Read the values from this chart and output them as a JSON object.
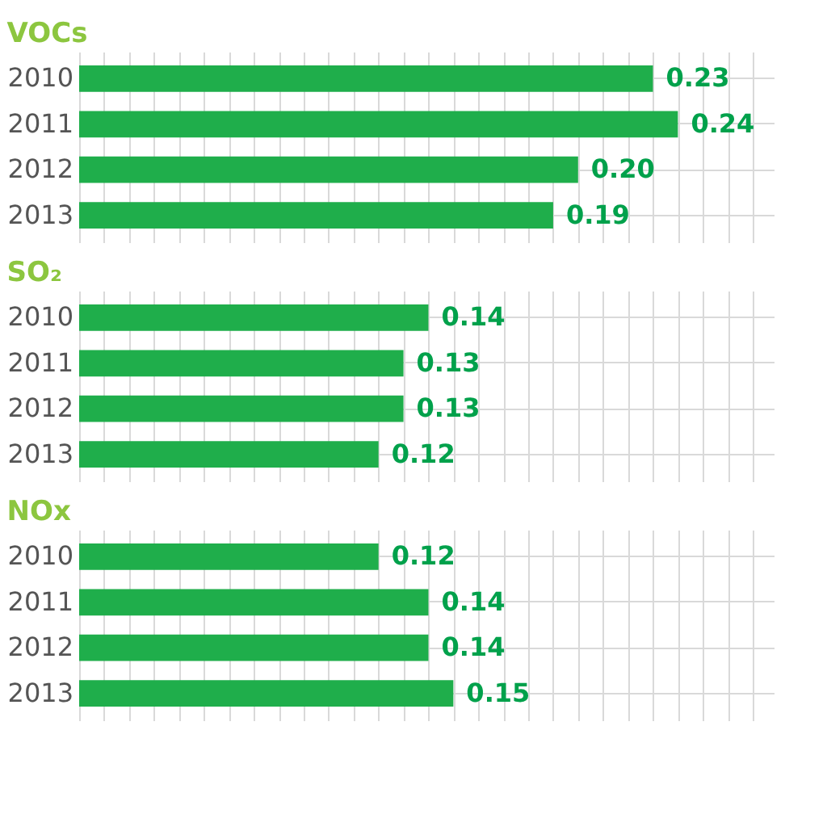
{
  "chart_data": [
    {
      "type": "bar",
      "orientation": "horizontal",
      "title": "VOCs",
      "categories": [
        "2010",
        "2011",
        "2012",
        "2013"
      ],
      "values": [
        0.23,
        0.24,
        0.2,
        0.19
      ],
      "value_labels": [
        "0.23",
        "0.24",
        "0.20",
        "0.19"
      ],
      "color": "#1fae4b",
      "grid": true,
      "tick_labels": "y"
    },
    {
      "type": "bar",
      "orientation": "horizontal",
      "title": "SO₂",
      "categories": [
        "2010",
        "2011",
        "2012",
        "2013"
      ],
      "values": [
        0.14,
        0.13,
        0.13,
        0.12
      ],
      "value_labels": [
        "0.14",
        "0.13",
        "0.13",
        "0.12"
      ],
      "color": "#1fae4b",
      "grid": true,
      "tick_labels": "y"
    },
    {
      "type": "bar",
      "orientation": "horizontal",
      "title": "NOx",
      "categories": [
        "2010",
        "2011",
        "2012",
        "2013"
      ],
      "values": [
        0.12,
        0.14,
        0.14,
        0.15
      ],
      "value_labels": [
        "0.12",
        "0.14",
        "0.14",
        "0.15"
      ],
      "color": "#1fae4b",
      "grid": true,
      "tick_labels": "y"
    }
  ]
}
